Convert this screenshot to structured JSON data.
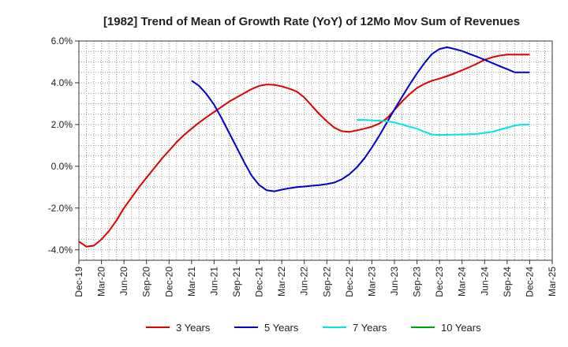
{
  "chart_data": {
    "type": "line",
    "title": "[1982]  Trend of Mean of Growth Rate (YoY) of 12Mo Mov Sum of Revenues",
    "xlabel": "",
    "ylabel": "",
    "ylim": [
      -4.5,
      6.0
    ],
    "y_ticks": [
      6.0,
      4.0,
      2.0,
      0.0,
      -2.0,
      -4.0
    ],
    "y_tick_labels": [
      "6.0%",
      "4.0%",
      "2.0%",
      "0.0%",
      "-2.0%",
      "-4.0%"
    ],
    "x_ticks": [
      "Dec-19",
      "Mar-20",
      "Jun-20",
      "Sep-20",
      "Dec-20",
      "Mar-21",
      "Jun-21",
      "Sep-21",
      "Dec-21",
      "Mar-22",
      "Jun-22",
      "Sep-22",
      "Dec-22",
      "Mar-23",
      "Jun-23",
      "Sep-23",
      "Dec-23",
      "Mar-24",
      "Jun-24",
      "Sep-24",
      "Dec-24",
      "Mar-25"
    ],
    "x_range_months": [
      0,
      63
    ],
    "grid": true,
    "legend_position": "bottom",
    "series": [
      {
        "name": "3 Years",
        "color": "#dd0000",
        "x": [
          0,
          1,
          2,
          3,
          4,
          5,
          6,
          7,
          8,
          9,
          10,
          11,
          12,
          13,
          14,
          15,
          16,
          17,
          18,
          19,
          20,
          21,
          22,
          23,
          24,
          25,
          26,
          27,
          28,
          29,
          30,
          31,
          32,
          33,
          34,
          35,
          36,
          37,
          38,
          39,
          40,
          41,
          42,
          43,
          44,
          45,
          46,
          47,
          48,
          49,
          50,
          51,
          52,
          53,
          54,
          55,
          56,
          57,
          58,
          59,
          60
        ],
        "values": [
          -3.6,
          -3.85,
          -3.8,
          -3.5,
          -3.1,
          -2.6,
          -2.0,
          -1.5,
          -1.0,
          -0.55,
          -0.1,
          0.35,
          0.75,
          1.15,
          1.5,
          1.8,
          2.1,
          2.35,
          2.6,
          2.85,
          3.1,
          3.3,
          3.5,
          3.7,
          3.85,
          3.92,
          3.9,
          3.83,
          3.72,
          3.58,
          3.3,
          2.9,
          2.5,
          2.15,
          1.85,
          1.68,
          1.65,
          1.72,
          1.8,
          1.9,
          2.05,
          2.3,
          2.7,
          3.1,
          3.45,
          3.75,
          3.95,
          4.1,
          4.2,
          4.32,
          4.45,
          4.6,
          4.75,
          4.92,
          5.1,
          5.22,
          5.3,
          5.35,
          5.35,
          5.35,
          5.35
        ]
      },
      {
        "name": "5 Years",
        "color": "#0000cc",
        "x": [
          15,
          16,
          17,
          18,
          19,
          20,
          21,
          22,
          23,
          24,
          25,
          26,
          27,
          28,
          29,
          30,
          31,
          32,
          33,
          34,
          35,
          36,
          37,
          38,
          39,
          40,
          41,
          42,
          43,
          44,
          45,
          46,
          47,
          48,
          49,
          50,
          51,
          52,
          53,
          54,
          55,
          56,
          57,
          58,
          59,
          60
        ],
        "values": [
          4.1,
          3.85,
          3.45,
          2.95,
          2.3,
          1.6,
          0.9,
          0.2,
          -0.45,
          -0.9,
          -1.15,
          -1.2,
          -1.12,
          -1.05,
          -1.0,
          -0.97,
          -0.93,
          -0.9,
          -0.85,
          -0.78,
          -0.62,
          -0.38,
          -0.05,
          0.38,
          0.9,
          1.48,
          2.1,
          2.72,
          3.32,
          3.9,
          4.45,
          4.95,
          5.38,
          5.62,
          5.7,
          5.62,
          5.52,
          5.38,
          5.25,
          5.1,
          4.95,
          4.8,
          4.65,
          4.5,
          4.5,
          4.5
        ]
      },
      {
        "name": "7 Years",
        "color": "#00e5e5",
        "x": [
          37,
          38,
          39,
          40,
          41,
          42,
          43,
          44,
          45,
          46,
          47,
          48,
          49,
          50,
          51,
          52,
          53,
          54,
          55,
          56,
          57,
          58,
          59,
          60
        ],
        "values": [
          2.22,
          2.22,
          2.2,
          2.18,
          2.15,
          2.1,
          2.0,
          1.9,
          1.8,
          1.65,
          1.52,
          1.5,
          1.51,
          1.52,
          1.52,
          1.53,
          1.55,
          1.6,
          1.65,
          1.75,
          1.85,
          1.95,
          2.0,
          2.0
        ]
      },
      {
        "name": "10 Years",
        "color": "#00a000",
        "x": [],
        "values": []
      }
    ]
  }
}
